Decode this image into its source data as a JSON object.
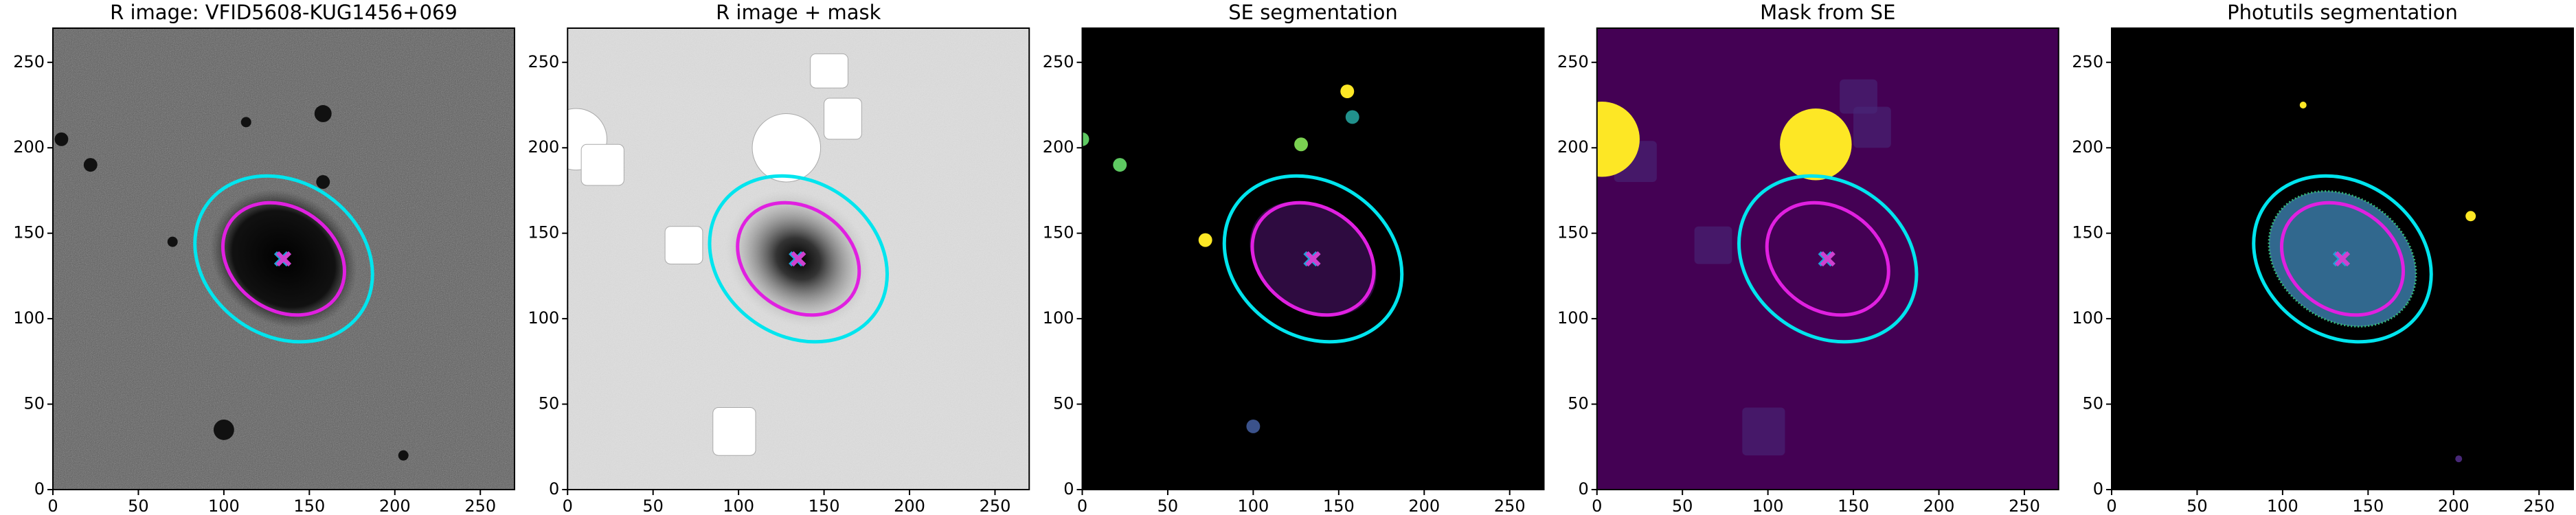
{
  "chart_data": [
    {
      "type": "image",
      "title": "R image: VFID5608-KUG1456+069",
      "xlim": [
        0,
        270
      ],
      "ylim": [
        0,
        270
      ],
      "xticks": [
        0,
        50,
        100,
        150,
        200,
        250
      ],
      "yticks": [
        0,
        50,
        100,
        150,
        200,
        250
      ]
    },
    {
      "type": "image",
      "title": "R image + mask",
      "xlim": [
        0,
        270
      ],
      "ylim": [
        0,
        270
      ],
      "xticks": [
        0,
        50,
        100,
        150,
        200,
        250
      ],
      "yticks": [
        0,
        50,
        100,
        150,
        200,
        250
      ]
    },
    {
      "type": "image",
      "title": "SE segmentation",
      "xlim": [
        0,
        270
      ],
      "ylim": [
        0,
        270
      ],
      "xticks": [
        0,
        50,
        100,
        150,
        200,
        250
      ],
      "yticks": [
        0,
        50,
        100,
        150,
        200,
        250
      ]
    },
    {
      "type": "image",
      "title": "Mask from SE",
      "xlim": [
        0,
        270
      ],
      "ylim": [
        0,
        270
      ],
      "xticks": [
        0,
        50,
        100,
        150,
        200,
        250
      ],
      "yticks": [
        0,
        50,
        100,
        150,
        200,
        250
      ]
    },
    {
      "type": "image",
      "title": "Photutils segmentation",
      "xlim": [
        0,
        270
      ],
      "ylim": [
        0,
        270
      ],
      "xticks": [
        0,
        50,
        100,
        150,
        200,
        250
      ],
      "yticks": [
        0,
        50,
        100,
        150,
        200,
        250
      ]
    }
  ]
}
